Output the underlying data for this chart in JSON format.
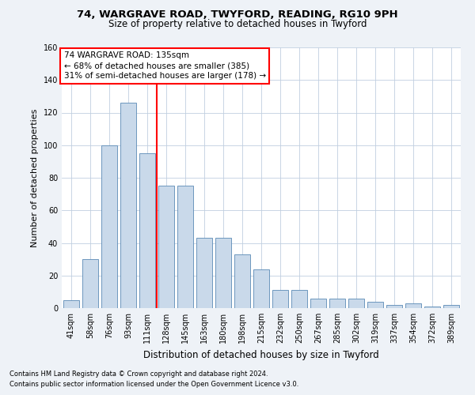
{
  "title1": "74, WARGRAVE ROAD, TWYFORD, READING, RG10 9PH",
  "title2": "Size of property relative to detached houses in Twyford",
  "xlabel": "Distribution of detached houses by size in Twyford",
  "ylabel": "Number of detached properties",
  "categories": [
    "41sqm",
    "58sqm",
    "76sqm",
    "93sqm",
    "111sqm",
    "128sqm",
    "145sqm",
    "163sqm",
    "180sqm",
    "198sqm",
    "215sqm",
    "232sqm",
    "250sqm",
    "267sqm",
    "285sqm",
    "302sqm",
    "319sqm",
    "337sqm",
    "354sqm",
    "372sqm",
    "389sqm"
  ],
  "bar_vals": [
    5,
    30,
    100,
    126,
    95,
    75,
    75,
    43,
    43,
    33,
    24,
    11,
    11,
    6,
    6,
    6,
    4,
    2,
    3,
    1,
    2
  ],
  "bar_color": "#c9d9ea",
  "bar_edge_color": "#5a8ab5",
  "vline_pos": 4.5,
  "vline_color": "red",
  "ylim": [
    0,
    160
  ],
  "yticks": [
    0,
    20,
    40,
    60,
    80,
    100,
    120,
    140,
    160
  ],
  "annotation_line1": "74 WARGRAVE ROAD: 135sqm",
  "annotation_line2": "← 68% of detached houses are smaller (385)",
  "annotation_line3": "31% of semi-detached houses are larger (178) →",
  "footnote1": "Contains HM Land Registry data © Crown copyright and database right 2024.",
  "footnote2": "Contains public sector information licensed under the Open Government Licence v3.0.",
  "background_color": "#eef2f7",
  "plot_bg_color": "#ffffff",
  "grid_color": "#c0cfe0",
  "title1_fontsize": 9.5,
  "title2_fontsize": 8.5,
  "ylabel_fontsize": 8,
  "xlabel_fontsize": 8.5,
  "tick_fontsize": 7,
  "annot_fontsize": 7.5,
  "footnote_fontsize": 6
}
